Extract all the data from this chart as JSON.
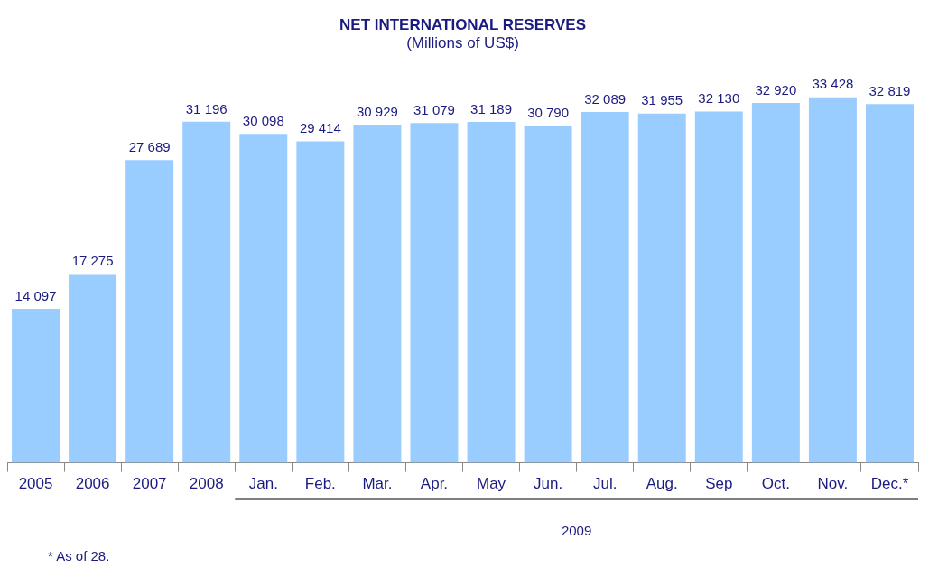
{
  "chart_data": {
    "type": "bar",
    "title": "NET INTERNATIONAL RESERVES",
    "subtitle": "(Millions of US$)",
    "categories": [
      "2005",
      "2006",
      "2007",
      "2008",
      "Jan.",
      "Feb.",
      "Mar.",
      "Apr.",
      "May",
      "Jun.",
      "Jul.",
      "Aug.",
      "Sep",
      "Oct.",
      "Nov.",
      "Dec.*"
    ],
    "values": [
      14097,
      17275,
      27689,
      31196,
      30098,
      29414,
      30929,
      31079,
      31189,
      30790,
      32089,
      31955,
      32130,
      32920,
      33428,
      32819
    ],
    "value_labels": [
      "14 097",
      "17 275",
      "27 689",
      "31 196",
      "30 098",
      "29 414",
      "30 929",
      "31 079",
      "31 189",
      "30 790",
      "32 089",
      "31 955",
      "32 130",
      "32 920",
      "33 428",
      "32 819"
    ],
    "color": "#99ccff",
    "grid": false,
    "legend": false,
    "annotations": [
      "2009",
      "* As of 28."
    ]
  }
}
